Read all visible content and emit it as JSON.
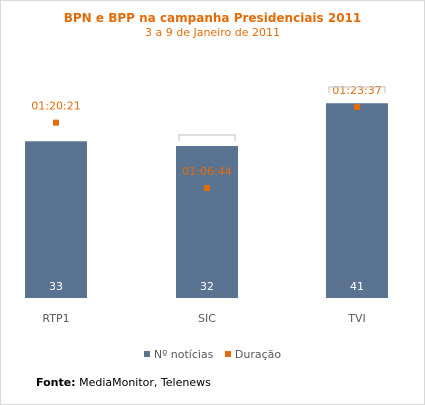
{
  "chart_data": {
    "type": "bar",
    "title": "BPN e BPP na campanha Presidenciais 2011",
    "subtitle": "3 a 9 de Janeiro de 2011",
    "categories": [
      "RTP1",
      "SIC",
      "TVI"
    ],
    "series": [
      {
        "name": "Nº notícias",
        "type": "bar",
        "color": "#5a7390",
        "values": [
          33,
          32,
          41
        ],
        "value_labels": [
          "33",
          "32",
          "41"
        ]
      },
      {
        "name": "Duração",
        "type": "marker",
        "color": "#e36c0a",
        "values": [
          "01:20:21",
          "01:06:44",
          "01:23:37"
        ],
        "value_seconds": [
          4821,
          4004,
          5017
        ]
      }
    ],
    "ylim": [
      0,
      48
    ],
    "grid": false,
    "legend": "bottom"
  },
  "source": {
    "label": "Fonte:",
    "text": "MediaMonitor, Telenews"
  }
}
